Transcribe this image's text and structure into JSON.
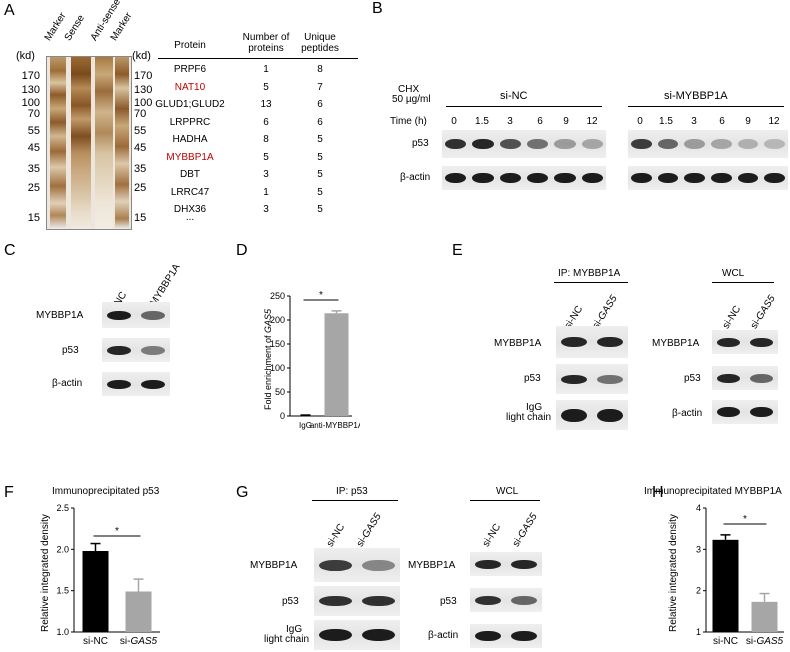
{
  "panels": {
    "A": "A",
    "B": "B",
    "C": "C",
    "D": "D",
    "E": "E",
    "F": "F",
    "G": "G",
    "H": "H"
  },
  "panel_a": {
    "kd_left": "(kd)",
    "kd_right": "(kd)",
    "lanes": [
      "Marker",
      "Sense",
      "Anti-sense",
      "Marker"
    ],
    "markers": [
      "170",
      "130",
      "100",
      "70",
      "55",
      "45",
      "35",
      "25",
      "15"
    ],
    "table_headers": [
      "Protein",
      "Number of proteins",
      "Unique peptides"
    ],
    "table_rows": [
      {
        "protein": "PRPF6",
        "num": "1",
        "pep": "8",
        "highlight": false
      },
      {
        "protein": "NAT10",
        "num": "5",
        "pep": "7",
        "highlight": true
      },
      {
        "protein": "GLUD1;GLUD2",
        "num": "13",
        "pep": "6",
        "highlight": false
      },
      {
        "protein": "LRPPRC",
        "num": "6",
        "pep": "6",
        "highlight": false
      },
      {
        "protein": "HADHA",
        "num": "8",
        "pep": "5",
        "highlight": false
      },
      {
        "protein": "MYBBP1A",
        "num": "5",
        "pep": "5",
        "highlight": true
      },
      {
        "protein": "DBT",
        "num": "3",
        "pep": "5",
        "highlight": false
      },
      {
        "protein": "LRRC47",
        "num": "1",
        "pep": "5",
        "highlight": false
      },
      {
        "protein": "DHX36",
        "num": "3",
        "pep": "5",
        "highlight": false
      }
    ],
    "ellipsis": "..."
  },
  "panel_b": {
    "chx_line1": "CHX",
    "chx_line2": "50 µg/ml",
    "group1": "si-NC",
    "group2": "si-MYBBP1A",
    "time_label": "Time (h)",
    "times": [
      "0",
      "1.5",
      "3",
      "6",
      "9",
      "12"
    ],
    "rows": [
      "p53",
      "β-actin"
    ]
  },
  "panel_c": {
    "lanes": [
      "si-NC",
      "si-MYBBP1A"
    ],
    "rows": [
      "MYBBP1A",
      "p53",
      "β-actin"
    ]
  },
  "panel_d": {
    "chart_data": {
      "type": "bar",
      "categories": [
        "IgG",
        "anti-MYBBP1A"
      ],
      "values": [
        1,
        214
      ],
      "errors": [
        1,
        5
      ],
      "ylabel": "Fold enrichment of GAS5",
      "ylim": [
        0,
        250
      ],
      "yticks": [
        0,
        50,
        100,
        150,
        200,
        250
      ],
      "significance": "*",
      "colors": [
        "#000000",
        "#a6a6a6"
      ]
    },
    "ylabel_prefix": "Fold enrichment of ",
    "ylabel_gene": "GAS5"
  },
  "panel_e": {
    "ip_label": "IP: MYBBP1A",
    "wcl_label": "WCL",
    "lanes": [
      "si-NC",
      "si-GAS5"
    ],
    "ip_rows": [
      "MYBBP1A",
      "p53",
      "IgG",
      "light chain"
    ],
    "wcl_rows": [
      "MYBBP1A",
      "p53",
      "β-actin"
    ]
  },
  "panel_f": {
    "title": "Immunoprecipitated p53",
    "chart_data": {
      "type": "bar",
      "categories": [
        "si-NC",
        "si-GAS5"
      ],
      "values": [
        1.98,
        1.49
      ],
      "errors": [
        0.09,
        0.15
      ],
      "ylabel": "Relative integrated density",
      "ylim": [
        1.0,
        2.5
      ],
      "yticks": [
        "1.0",
        "1.5",
        "2.0",
        "2.5"
      ],
      "significance": "*",
      "colors": [
        "#000000",
        "#a6a6a6"
      ]
    },
    "cat_prefix": "si-",
    "cat_gene": "GAS5"
  },
  "panel_g": {
    "ip_label": "IP: p53",
    "wcl_label": "WCL",
    "lanes": [
      "si-NC",
      "si-GAS5"
    ],
    "ip_rows": [
      "MYBBP1A",
      "p53",
      "IgG",
      "light chain"
    ],
    "wcl_rows": [
      "MYBBP1A",
      "p53",
      "β-actin"
    ]
  },
  "panel_h": {
    "title": "Immunoprecipitated MYBBP1A",
    "chart_data": {
      "type": "bar",
      "categories": [
        "si-NC",
        "si-GAS5"
      ],
      "values": [
        3.23,
        1.73
      ],
      "errors": [
        0.12,
        0.2
      ],
      "ylabel": "Relative integrated density",
      "ylim": [
        1,
        4
      ],
      "yticks": [
        "1",
        "2",
        "3",
        "4"
      ],
      "significance": "*",
      "colors": [
        "#000000",
        "#a6a6a6"
      ]
    },
    "cat_prefix": "si-",
    "cat_gene": "GAS5"
  }
}
